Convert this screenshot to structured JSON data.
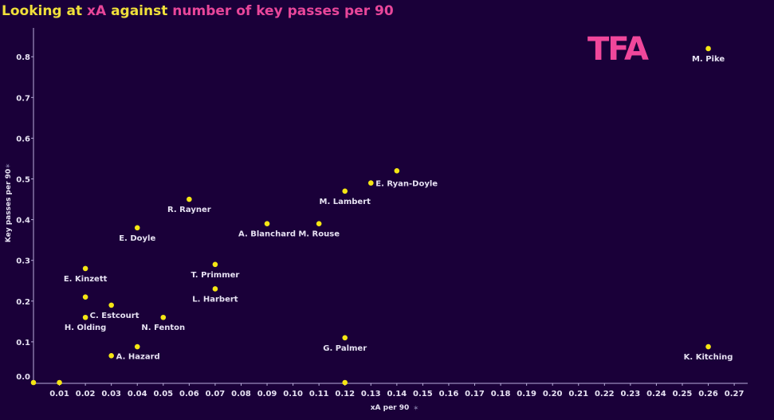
{
  "title": {
    "part1": "Looking at ",
    "part2": "xA",
    "part3": " against ",
    "part4": "number of key passes per 90"
  },
  "logo": "TFA",
  "colors": {
    "background": "#1a0039",
    "point": "#f5e614",
    "axis": "#b9aedb",
    "label": "#e6e1f2",
    "title_yellow": "#f0e03a",
    "title_pink": "#e8469a",
    "logo": "#f0479b"
  },
  "chart_data": {
    "type": "scatter",
    "title": "Looking at xA against number of key passes per 90",
    "xlabel": "xA per 90",
    "ylabel": "Key passes per 90",
    "xlim": [
      0,
      0.275
    ],
    "ylim": [
      0,
      0.85
    ],
    "xticks": [
      "0.01",
      "0.02",
      "0.03",
      "0.04",
      "0.05",
      "0.06",
      "0.07",
      "0.08",
      "0.09",
      "0.10",
      "0.11",
      "0.12",
      "0.13",
      "0.14",
      "0.15",
      "0.16",
      "0.17",
      "0.18",
      "0.19",
      "0.20",
      "0.21",
      "0.22",
      "0.23",
      "0.24",
      "0.25",
      "0.26",
      "0.27"
    ],
    "yticks": [
      "0.0",
      "0.1",
      "0.2",
      "0.3",
      "0.4",
      "0.5",
      "0.6",
      "0.7",
      "0.8"
    ],
    "grid": false,
    "points": [
      {
        "label": "M. Pike",
        "x": 0.26,
        "y": 0.82,
        "pos": "below"
      },
      {
        "label": "",
        "x": 0.14,
        "y": 0.52,
        "pos": "none"
      },
      {
        "label": "E. Ryan-Doyle",
        "x": 0.13,
        "y": 0.49,
        "pos": "right"
      },
      {
        "label": "M. Lambert",
        "x": 0.12,
        "y": 0.47,
        "pos": "below"
      },
      {
        "label": "R. Rayner",
        "x": 0.06,
        "y": 0.45,
        "pos": "below"
      },
      {
        "label": "A. Blanchard",
        "x": 0.09,
        "y": 0.39,
        "pos": "below"
      },
      {
        "label": "M. Rouse",
        "x": 0.11,
        "y": 0.39,
        "pos": "below"
      },
      {
        "label": "E. Doyle",
        "x": 0.04,
        "y": 0.38,
        "pos": "below"
      },
      {
        "label": "T. Primmer",
        "x": 0.07,
        "y": 0.29,
        "pos": "below"
      },
      {
        "label": "E. Kinzett",
        "x": 0.02,
        "y": 0.28,
        "pos": "below"
      },
      {
        "label": "L. Harbert",
        "x": 0.07,
        "y": 0.23,
        "pos": "below"
      },
      {
        "label": "",
        "x": 0.02,
        "y": 0.21,
        "pos": "none"
      },
      {
        "label": "C. Estcourt",
        "x": 0.03,
        "y": 0.19,
        "pos": "below-right"
      },
      {
        "label": "H. Olding",
        "x": 0.02,
        "y": 0.16,
        "pos": "below"
      },
      {
        "label": "N. Fenton",
        "x": 0.05,
        "y": 0.16,
        "pos": "below"
      },
      {
        "label": "G. Palmer",
        "x": 0.12,
        "y": 0.11,
        "pos": "below"
      },
      {
        "label": "",
        "x": 0.04,
        "y": 0.088,
        "pos": "none"
      },
      {
        "label": "K. Kitching",
        "x": 0.26,
        "y": 0.088,
        "pos": "below"
      },
      {
        "label": "A. Hazard",
        "x": 0.03,
        "y": 0.066,
        "pos": "right"
      },
      {
        "label": "",
        "x": 0.0,
        "y": 0.0,
        "pos": "none"
      },
      {
        "label": "",
        "x": 0.01,
        "y": 0.0,
        "pos": "none"
      },
      {
        "label": "",
        "x": 0.12,
        "y": 0.0,
        "pos": "none"
      }
    ]
  }
}
